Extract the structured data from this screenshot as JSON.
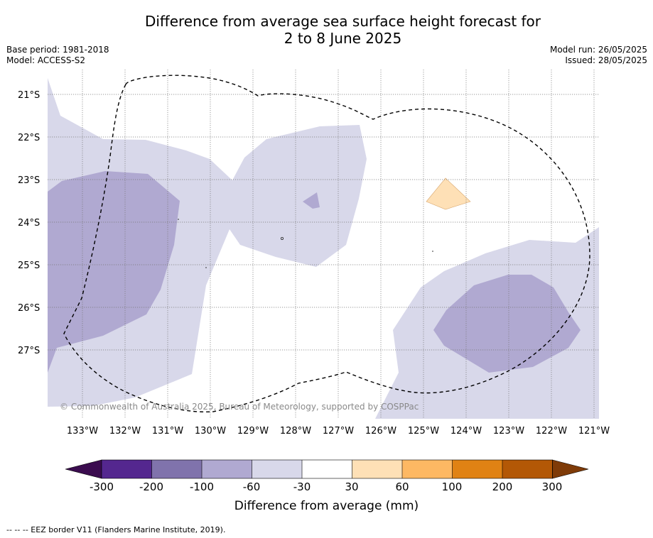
{
  "header": {
    "title_line1": "Difference from average sea surface height forecast for",
    "title_line2": "2 to 8 June 2025",
    "base_period": "Base period: 1981-2018",
    "model": "Model: ACCESS-S2",
    "model_run": "Model run: 26/05/2025",
    "issued": "Issued: 28/05/2025"
  },
  "map": {
    "lat_labels": [
      "21°S",
      "22°S",
      "23°S",
      "24°S",
      "25°S",
      "26°S",
      "27°S"
    ],
    "lon_labels": [
      "133°W",
      "132°W",
      "131°W",
      "130°W",
      "129°W",
      "128°W",
      "127°W",
      "126°W",
      "125°W",
      "124°W",
      "123°W",
      "122°W",
      "121°W"
    ],
    "copyright": "© Commonwealth of Australia 2025, Bureau of Meteorology, supported by COSPPac",
    "grid": "dotted",
    "colors": {
      "neg_30_60": "#d8d8ea",
      "neg_60_100": "#b0a9d1",
      "pos_30_60": "#fee0b6",
      "eez_border": "#000000"
    }
  },
  "colorbar": {
    "title": "Difference from average (mm)",
    "ticks": [
      "-300",
      "-200",
      "-100",
      "-60",
      "-30",
      "30",
      "60",
      "100",
      "200",
      "300"
    ],
    "colors": [
      "#3b0c4f",
      "#54278f",
      "#8073ac",
      "#b0a9d1",
      "#d8d8ea",
      "#ffffff",
      "#fee0b6",
      "#fdb863",
      "#e08214",
      "#b35806",
      "#7f3b08"
    ]
  },
  "footnote": "-- -- -- EEZ border V11 (Flanders Marine Institute, 2019)."
}
